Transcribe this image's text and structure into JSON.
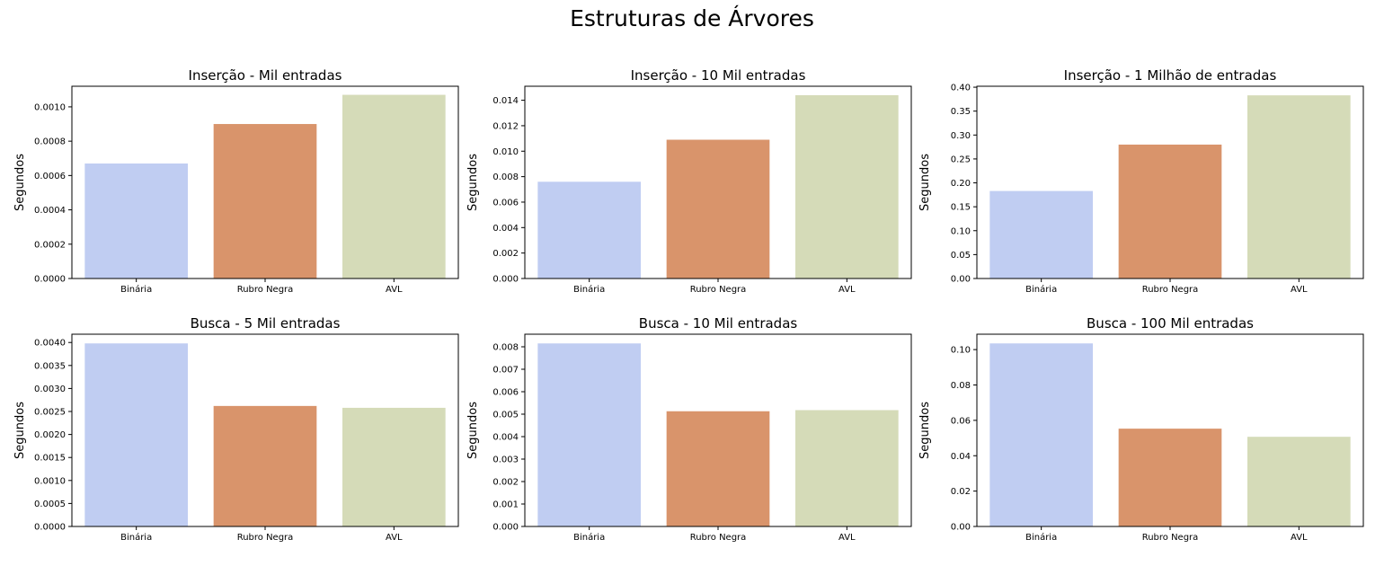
{
  "figure": {
    "title": "Estruturas de Árvores"
  },
  "colors": {
    "Binária": "#c0cdf2",
    "Rubro Negra": "#d9946b",
    "AVL": "#d5dbb8"
  },
  "chart_data": [
    {
      "type": "bar",
      "title": "Inserção - Mil entradas",
      "ylabel": "Segundos",
      "categories": [
        "Binária",
        "Rubro Negra",
        "AVL"
      ],
      "values": [
        0.00067,
        0.0009,
        0.00107
      ],
      "ylim": [
        0,
        0.00112
      ],
      "yticks": [
        0,
        0.0002,
        0.0004,
        0.0006,
        0.0008,
        0.001
      ],
      "ytick_labels": [
        "0.0000",
        "0.0002",
        "0.0004",
        "0.0006",
        "0.0008",
        "0.0010"
      ]
    },
    {
      "type": "bar",
      "title": "Inserção - 10 Mil entradas",
      "ylabel": "Segundos",
      "categories": [
        "Binária",
        "Rubro Negra",
        "AVL"
      ],
      "values": [
        0.0076,
        0.0109,
        0.0144
      ],
      "ylim": [
        0,
        0.0151
      ],
      "yticks": [
        0,
        0.002,
        0.004,
        0.006,
        0.008,
        0.01,
        0.012,
        0.014
      ],
      "ytick_labels": [
        "0.000",
        "0.002",
        "0.004",
        "0.006",
        "0.008",
        "0.010",
        "0.012",
        "0.014"
      ]
    },
    {
      "type": "bar",
      "title": "Inserção - 1 Milhão de entradas",
      "ylabel": "Segundos",
      "categories": [
        "Binária",
        "Rubro Negra",
        "AVL"
      ],
      "values": [
        0.183,
        0.28,
        0.383
      ],
      "ylim": [
        0,
        0.402
      ],
      "yticks": [
        0,
        0.05,
        0.1,
        0.15,
        0.2,
        0.25,
        0.3,
        0.35,
        0.4
      ],
      "ytick_labels": [
        "0.00",
        "0.05",
        "0.10",
        "0.15",
        "0.20",
        "0.25",
        "0.30",
        "0.35",
        "0.40"
      ]
    },
    {
      "type": "bar",
      "title": "Busca - 5 Mil entradas",
      "ylabel": "Segundos",
      "categories": [
        "Binária",
        "Rubro Negra",
        "AVL"
      ],
      "values": [
        0.00398,
        0.00262,
        0.00258
      ],
      "ylim": [
        0,
        0.00418
      ],
      "yticks": [
        0,
        0.0005,
        0.001,
        0.0015,
        0.002,
        0.0025,
        0.003,
        0.0035,
        0.004
      ],
      "ytick_labels": [
        "0.0000",
        "0.0005",
        "0.0010",
        "0.0015",
        "0.0020",
        "0.0025",
        "0.0030",
        "0.0035",
        "0.0040"
      ]
    },
    {
      "type": "bar",
      "title": "Busca - 10 Mil entradas",
      "ylabel": "Segundos",
      "categories": [
        "Binária",
        "Rubro Negra",
        "AVL"
      ],
      "values": [
        0.00815,
        0.00513,
        0.00518
      ],
      "ylim": [
        0,
        0.00856
      ],
      "yticks": [
        0,
        0.001,
        0.002,
        0.003,
        0.004,
        0.005,
        0.006,
        0.007,
        0.008
      ],
      "ytick_labels": [
        "0.000",
        "0.001",
        "0.002",
        "0.003",
        "0.004",
        "0.005",
        "0.006",
        "0.007",
        "0.008"
      ]
    },
    {
      "type": "bar",
      "title": "Busca - 100 Mil entradas",
      "ylabel": "Segundos",
      "categories": [
        "Binária",
        "Rubro Negra",
        "AVL"
      ],
      "values": [
        0.1035,
        0.0553,
        0.0507
      ],
      "ylim": [
        0,
        0.1087
      ],
      "yticks": [
        0,
        0.02,
        0.04,
        0.06,
        0.08,
        0.1
      ],
      "ytick_labels": [
        "0.00",
        "0.02",
        "0.04",
        "0.06",
        "0.08",
        "0.10"
      ]
    }
  ]
}
